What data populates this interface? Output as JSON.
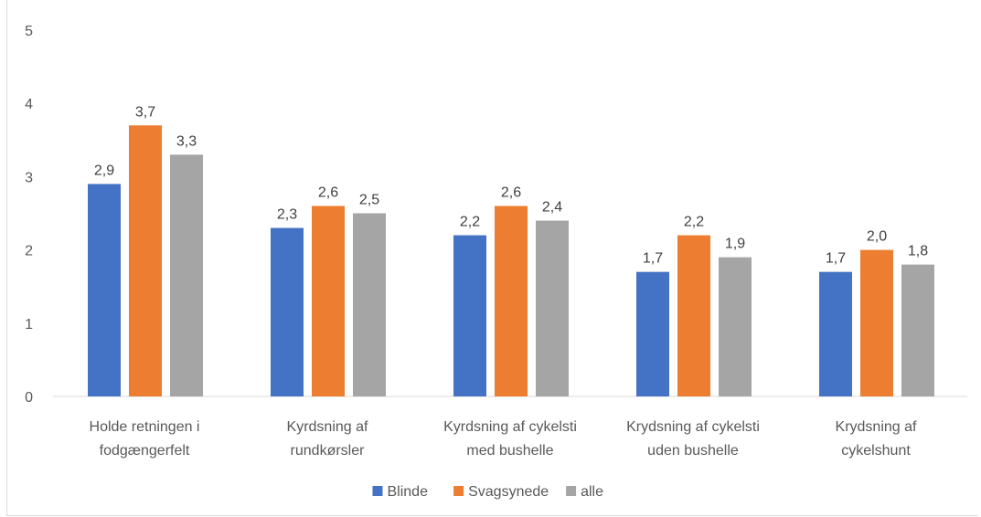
{
  "chart_data": {
    "type": "bar",
    "title": "",
    "xlabel": "",
    "ylabel": "",
    "ylim": [
      0,
      5
    ],
    "yticks": [
      "0",
      "1",
      "2",
      "3",
      "4",
      "5"
    ],
    "grid": false,
    "legend_position": "bottom",
    "categories": [
      [
        "Holde retningen i",
        "fodgængerfelt"
      ],
      [
        "Kyrdsning af",
        "rundkørsler"
      ],
      [
        "Kyrdsning af cykelsti",
        "med bushelle"
      ],
      [
        "Krydsning af cykelsti",
        "uden bushelle"
      ],
      [
        "Krydsning af",
        "cykelshunt"
      ]
    ],
    "series": [
      {
        "name": "Blinde",
        "color": "#4472c4",
        "values": [
          2.9,
          2.3,
          2.2,
          1.7,
          1.7
        ],
        "labels": [
          "2,9",
          "2,3",
          "2,2",
          "1,7",
          "1,7"
        ]
      },
      {
        "name": "Svagsynede",
        "color": "#ed7d31",
        "values": [
          3.7,
          2.6,
          2.6,
          2.2,
          2.0
        ],
        "labels": [
          "3,7",
          "2,6",
          "2,6",
          "2,2",
          "2,0"
        ]
      },
      {
        "name": "alle",
        "color": "#a5a5a5",
        "values": [
          3.3,
          2.5,
          2.4,
          1.9,
          1.8
        ],
        "labels": [
          "3,3",
          "2,5",
          "2,4",
          "1,9",
          "1,8"
        ]
      }
    ]
  }
}
